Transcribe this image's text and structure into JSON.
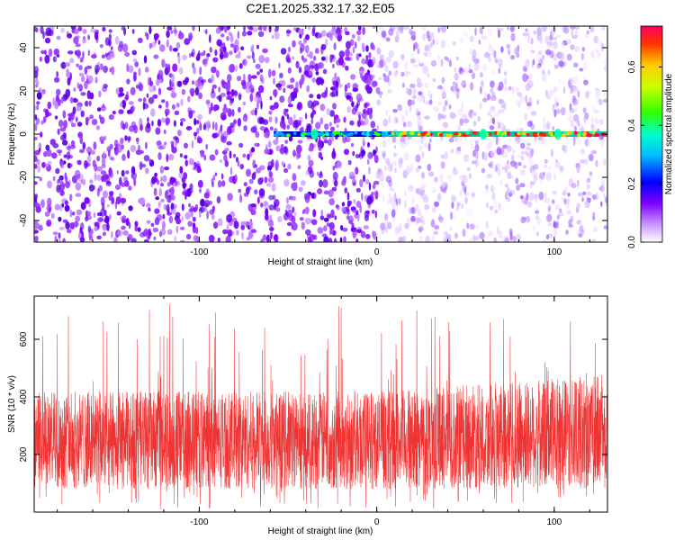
{
  "title": "C2E1.2025.332.17.32.E05",
  "chart_data": [
    {
      "type": "heatmap",
      "xlabel": "Height of straight line (km)",
      "ylabel": "Frequency (Hz)",
      "xlim": [
        -193,
        130
      ],
      "ylim": [
        -50,
        50
      ],
      "x_ticks": [
        -100,
        0,
        100
      ],
      "y_ticks": [
        -40,
        -20,
        0,
        20,
        40
      ],
      "colorbar": {
        "label": "Normalized spectral amplitude",
        "range": [
          0.0,
          0.74
        ],
        "ticks": [
          0.0,
          0.2,
          0.4,
          0.6
        ]
      },
      "background_note_x_split": 0,
      "signal_line": {
        "frequency": 0,
        "x_start": -58,
        "x_end": 130
      }
    },
    {
      "type": "line",
      "xlabel": "Height of straight line (km)",
      "ylabel": "SNR (10 * v/v)",
      "xlim": [
        -193,
        130
      ],
      "ylim": [
        0,
        750
      ],
      "x_ticks": [
        -100,
        0,
        100
      ],
      "y_ticks": [
        200,
        400,
        600
      ],
      "series": [
        {
          "color": "#ee3333",
          "typical_low": 80,
          "typical_high": 420,
          "peak_max": 730
        }
      ]
    }
  ]
}
